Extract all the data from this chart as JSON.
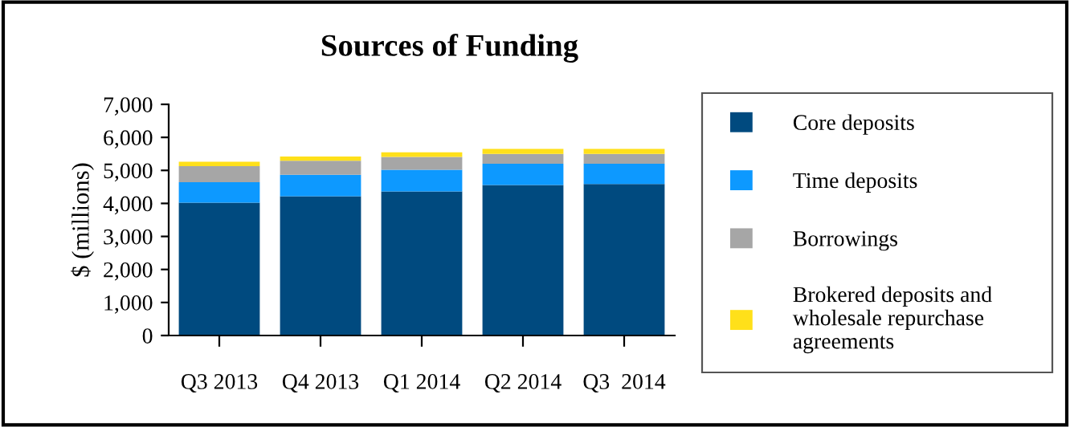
{
  "chart_data": {
    "type": "bar",
    "title": "Sources of Funding",
    "ylabel": "$ (millions)",
    "categories": [
      "Q3 2013",
      "Q4 2013",
      "Q1 2014",
      "Q2 2014",
      "Q3  2014"
    ],
    "stacked": true,
    "series": [
      {
        "name": "Core deposits",
        "color": "#004a7f",
        "values": [
          4020,
          4220,
          4360,
          4560,
          4590
        ]
      },
      {
        "name": "Time deposits",
        "color": "#0d99ff",
        "values": [
          620,
          650,
          660,
          640,
          610
        ]
      },
      {
        "name": "Borrowings",
        "color": "#a6a6a6",
        "values": [
          490,
          420,
          390,
          300,
          300
        ]
      },
      {
        "name": "Brokered deposits and\nwholesale repurchase\nagreements",
        "color": "#ffe01a",
        "values": [
          130,
          130,
          140,
          150,
          150
        ]
      }
    ],
    "ylim": [
      0,
      7000
    ],
    "yticks": [
      {
        "value": 0,
        "label": "0"
      },
      {
        "value": 1000,
        "label": "1,000"
      },
      {
        "value": 2000,
        "label": "2,000"
      },
      {
        "value": 3000,
        "label": "3,000"
      },
      {
        "value": 4000,
        "label": "4,000"
      },
      {
        "value": 5000,
        "label": "5,000"
      },
      {
        "value": 6000,
        "label": "6,000"
      },
      {
        "value": 7000,
        "label": "7,000"
      }
    ],
    "grid": false,
    "legend": "right"
  }
}
